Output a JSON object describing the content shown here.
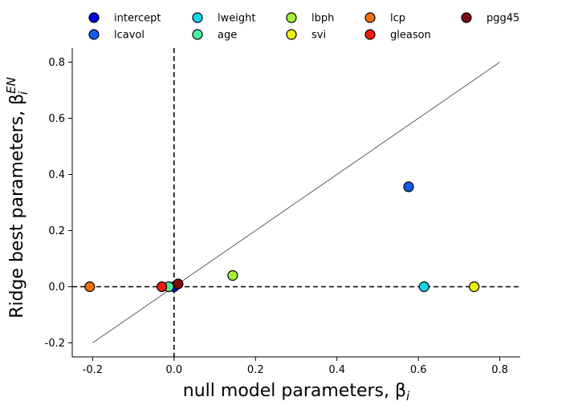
{
  "chart_data": {
    "type": "scatter",
    "xlabel": "null model parameters, β",
    "xlabel_sub": "i",
    "ylabel": "Ridge best parameters, β",
    "ylabel_sub": "i",
    "ylabel_sup": "EN",
    "xlim": [
      -0.25,
      0.85
    ],
    "ylim": [
      -0.25,
      0.85
    ],
    "xticks": [
      "-0.2",
      "0.0",
      "0.2",
      "0.4",
      "0.6",
      "0.8"
    ],
    "yticks": [
      "-0.2",
      "0.0",
      "0.2",
      "0.4",
      "0.6",
      "0.8"
    ],
    "xtick_values": [
      -0.2,
      0.0,
      0.2,
      0.4,
      0.6,
      0.8
    ],
    "ytick_values": [
      -0.2,
      0.0,
      0.2,
      0.4,
      0.6,
      0.8
    ],
    "reference_line": {
      "x": [
        -0.2,
        0.8
      ],
      "y": [
        -0.2,
        0.8
      ]
    },
    "zero_lines": {
      "x": 0,
      "y": 0,
      "style": "dashed"
    },
    "legend_position": "top",
    "series": [
      {
        "name": "intercept",
        "color": "#0000e6",
        "x": 0.0,
        "y": 0.0
      },
      {
        "name": "lcavol",
        "color": "#0f5cf5",
        "x": 0.576,
        "y": 0.356
      },
      {
        "name": "lweight",
        "color": "#11d6e8",
        "x": 0.614,
        "y": 0.0
      },
      {
        "name": "age",
        "color": "#4ef0a0",
        "x": -0.013,
        "y": 0.0
      },
      {
        "name": "lbph",
        "color": "#a6f03b",
        "x": 0.144,
        "y": 0.04
      },
      {
        "name": "svi",
        "color": "#f0f010",
        "x": 0.737,
        "y": 0.0
      },
      {
        "name": "lcp",
        "color": "#f07010",
        "x": -0.207,
        "y": 0.0
      },
      {
        "name": "gleason",
        "color": "#f01c10",
        "x": -0.03,
        "y": 0.0
      },
      {
        "name": "pgg45",
        "color": "#800a0a",
        "x": 0.01,
        "y": 0.01
      }
    ]
  }
}
